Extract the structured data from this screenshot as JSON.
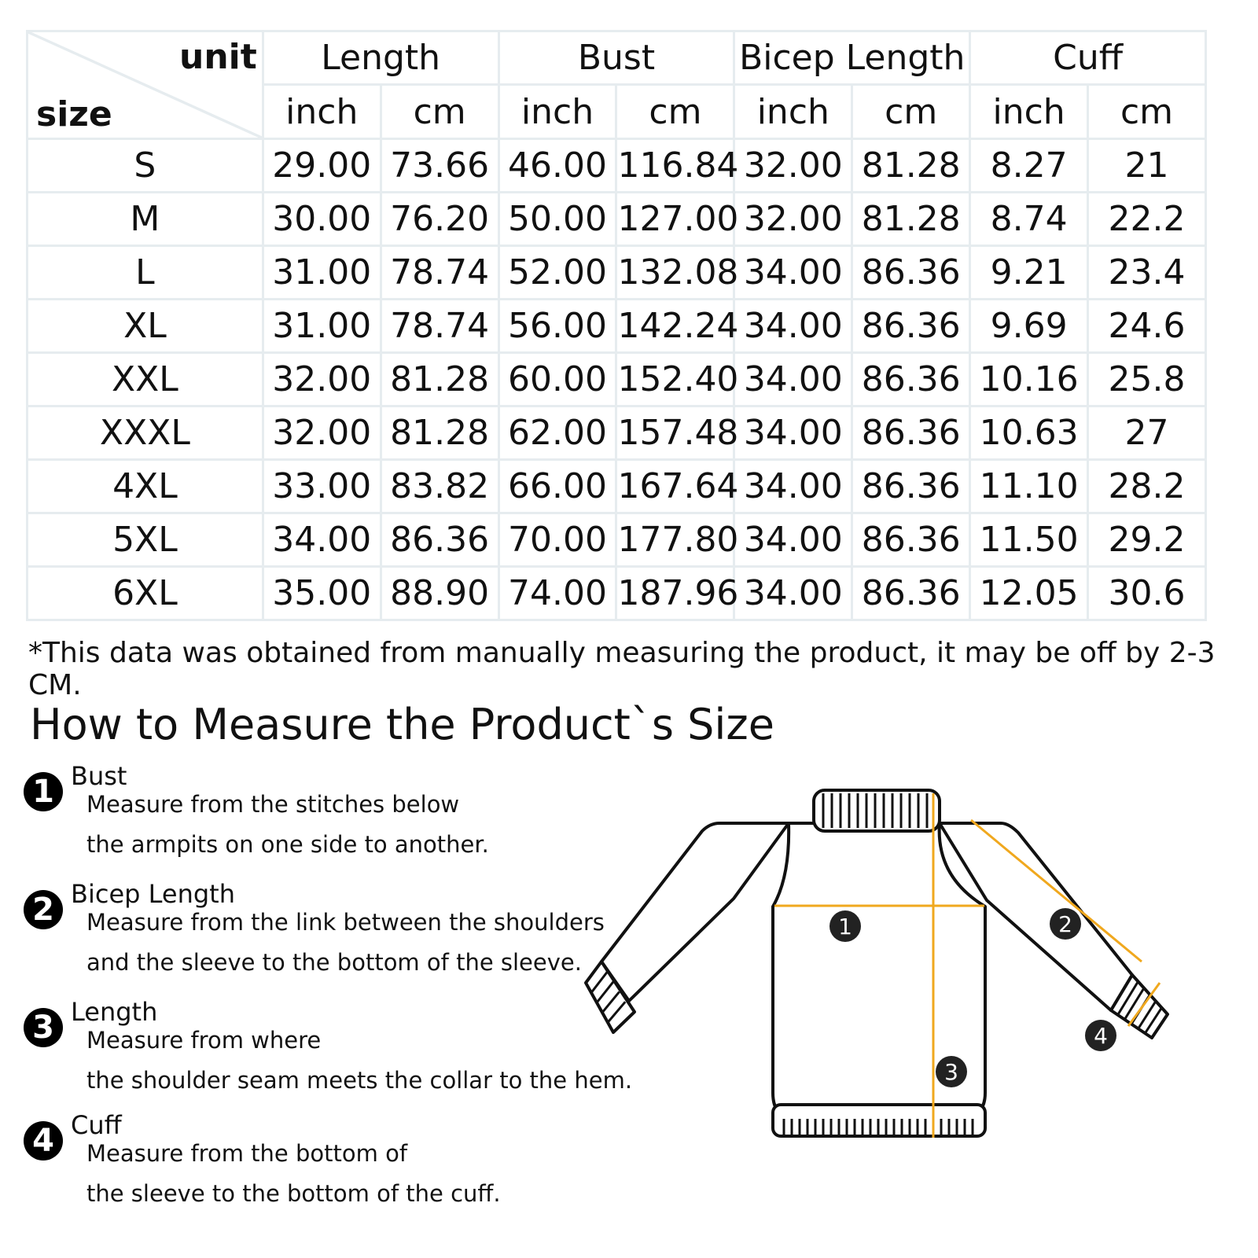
{
  "table": {
    "corner_unit": "unit",
    "corner_size": "size",
    "groups": [
      "Length",
      "Bust",
      "Bicep Length",
      "Cuff"
    ],
    "units": [
      "inch",
      "cm",
      "inch",
      "cm",
      "inch",
      "cm",
      "inch",
      "cm"
    ],
    "rows": [
      [
        "S",
        "29.00",
        "73.66",
        "46.00",
        "116.84",
        "32.00",
        "81.28",
        "8.27",
        "21"
      ],
      [
        "M",
        "30.00",
        "76.20",
        "50.00",
        "127.00",
        "32.00",
        "81.28",
        "8.74",
        "22.2"
      ],
      [
        "L",
        "31.00",
        "78.74",
        "52.00",
        "132.08",
        "34.00",
        "86.36",
        "9.21",
        "23.4"
      ],
      [
        "XL",
        "31.00",
        "78.74",
        "56.00",
        "142.24",
        "34.00",
        "86.36",
        "9.69",
        "24.6"
      ],
      [
        "XXL",
        "32.00",
        "81.28",
        "60.00",
        "152.40",
        "34.00",
        "86.36",
        "10.16",
        "25.8"
      ],
      [
        "XXXL",
        "32.00",
        "81.28",
        "62.00",
        "157.48",
        "34.00",
        "86.36",
        "10.63",
        "27"
      ],
      [
        "4XL",
        "33.00",
        "83.82",
        "66.00",
        "167.64",
        "34.00",
        "86.36",
        "11.10",
        "28.2"
      ],
      [
        "5XL",
        "34.00",
        "86.36",
        "70.00",
        "177.80",
        "34.00",
        "86.36",
        "11.50",
        "29.2"
      ],
      [
        "6XL",
        "35.00",
        "88.90",
        "74.00",
        "187.96",
        "34.00",
        "86.36",
        "12.05",
        "30.6"
      ]
    ]
  },
  "note": "*This data was obtained from manually measuring the product, it may be off by 2-3 CM.",
  "howto_title": "How to Measure the Product`s Size",
  "steps": [
    {
      "num": "1",
      "title": "Bust",
      "lines": [
        "Measure from the stitches below",
        " the armpits on one side to another."
      ]
    },
    {
      "num": "2",
      "title": "Bicep Length",
      "lines": [
        "Measure from the link between the shoulders",
        " and the sleeve to the bottom of the sleeve."
      ]
    },
    {
      "num": "3",
      "title": "Length",
      "lines": [
        "Measure from where",
        "the shoulder seam meets the collar to the hem."
      ]
    },
    {
      "num": "4",
      "title": "Cuff",
      "lines": [
        "Measure from the bottom of",
        "the sleeve to the bottom of the cuff."
      ]
    }
  ],
  "diagram_labels": [
    "1",
    "2",
    "3",
    "4"
  ],
  "colors": {
    "measure_line": "#f0a81e",
    "grid": "#e6ecef"
  }
}
